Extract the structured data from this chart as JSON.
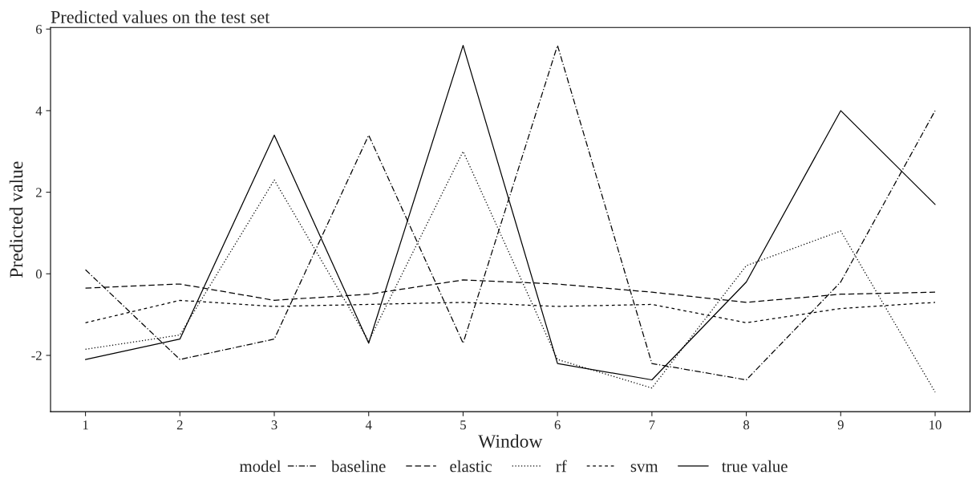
{
  "chart_data": {
    "type": "line",
    "title": "Predicted values on the test set",
    "xlabel": "Window",
    "ylabel": "Predicted value",
    "legend_title": "model",
    "x": [
      1,
      2,
      3,
      4,
      5,
      6,
      7,
      8,
      9,
      10
    ],
    "xlim": [
      0.63,
      10.37
    ],
    "xticks": [
      1,
      2,
      3,
      4,
      5,
      6,
      7,
      8,
      9,
      10
    ],
    "ylim": [
      -3.38,
      6.04
    ],
    "yticks": [
      {
        "value": -2,
        "label": "-2"
      },
      0,
      2,
      4,
      6
    ],
    "grid": false,
    "legend": "bottom",
    "series": [
      {
        "name": "baseline",
        "color": "#000000",
        "line_style": "dashdot",
        "values": [
          0.1,
          -2.1,
          -1.6,
          3.4,
          -1.7,
          5.6,
          -2.2,
          -2.6,
          -0.2,
          4.0
        ]
      },
      {
        "name": "elastic",
        "color": "#000000",
        "line_style": "dashed",
        "values": [
          -0.35,
          -0.25,
          -0.65,
          -0.5,
          -0.15,
          -0.25,
          -0.45,
          -0.7,
          -0.5,
          -0.45
        ]
      },
      {
        "name": "rf",
        "color": "#000000",
        "line_style": "dotted",
        "values": [
          -1.85,
          -1.5,
          2.3,
          -1.65,
          3.0,
          -2.1,
          -2.8,
          0.2,
          1.05,
          -2.9
        ]
      },
      {
        "name": "svm",
        "color": "#000000",
        "line_style": "shortdash",
        "values": [
          -1.2,
          -0.65,
          -0.8,
          -0.75,
          -0.7,
          -0.8,
          -0.75,
          -1.2,
          -0.85,
          -0.7
        ]
      },
      {
        "name": "true value",
        "color": "#000000",
        "line_style": "solid",
        "values": [
          -2.1,
          -1.6,
          3.4,
          -1.7,
          5.6,
          -2.2,
          -2.6,
          -0.2,
          4.0,
          1.7
        ]
      }
    ]
  }
}
